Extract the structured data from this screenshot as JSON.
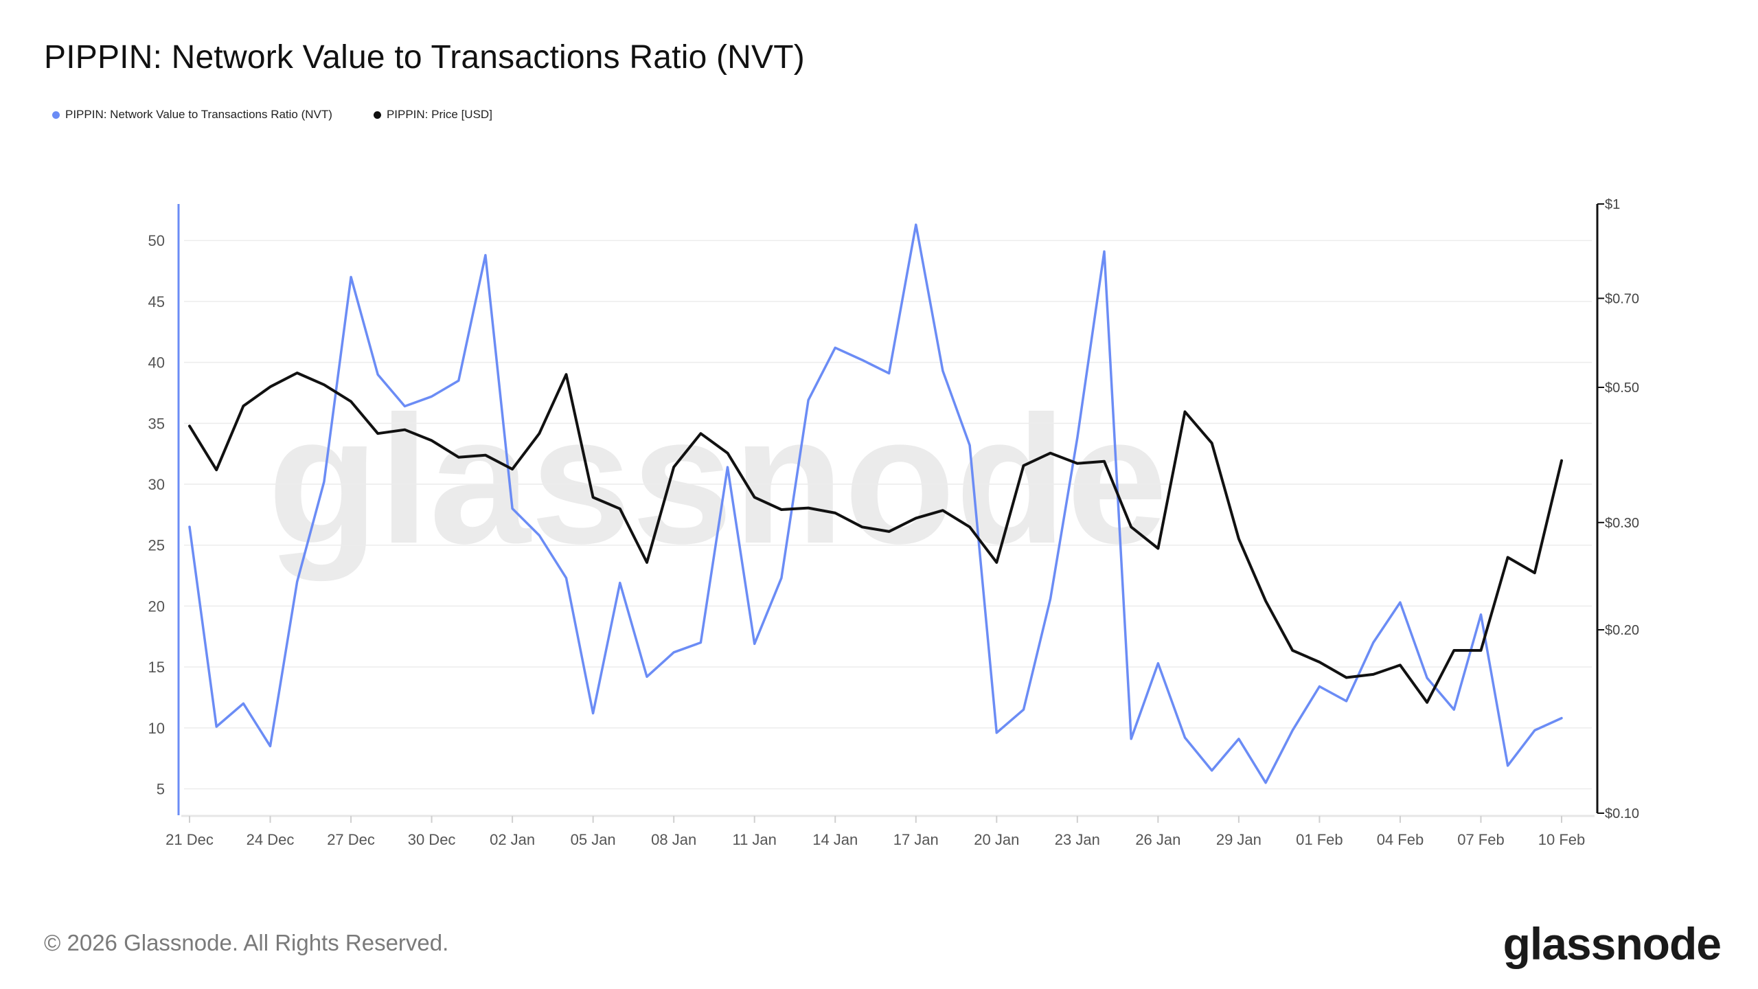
{
  "chart_data": {
    "type": "line",
    "title": "PIPPIN: Network Value to Transactions Ratio (NVT)",
    "x": [
      "21 Dec",
      "22 Dec",
      "23 Dec",
      "24 Dec",
      "25 Dec",
      "26 Dec",
      "27 Dec",
      "28 Dec",
      "29 Dec",
      "30 Dec",
      "31 Dec",
      "01 Jan",
      "02 Jan",
      "03 Jan",
      "04 Jan",
      "05 Jan",
      "06 Jan",
      "07 Jan",
      "08 Jan",
      "09 Jan",
      "10 Jan",
      "11 Jan",
      "12 Jan",
      "13 Jan",
      "14 Jan",
      "15 Jan",
      "16 Jan",
      "17 Jan",
      "18 Jan",
      "19 Jan",
      "20 Jan",
      "21 Jan",
      "22 Jan",
      "23 Jan",
      "24 Jan",
      "25 Jan",
      "26 Jan",
      "27 Jan",
      "28 Jan",
      "29 Jan",
      "30 Jan",
      "31 Jan",
      "01 Feb",
      "02 Feb",
      "03 Feb",
      "04 Feb",
      "05 Feb",
      "06 Feb",
      "07 Feb",
      "08 Feb",
      "09 Feb",
      "10 Feb"
    ],
    "x_tick_labels": [
      "21 Dec",
      "24 Dec",
      "27 Dec",
      "30 Dec",
      "02 Jan",
      "05 Jan",
      "08 Jan",
      "11 Jan",
      "14 Jan",
      "17 Jan",
      "20 Jan",
      "23 Jan",
      "26 Jan",
      "29 Jan",
      "01 Feb",
      "04 Feb",
      "07 Feb",
      "10 Feb"
    ],
    "y_ticks": [
      5,
      10,
      15,
      20,
      25,
      30,
      35,
      40,
      45,
      50
    ],
    "y_range": [
      3,
      53
    ],
    "y2_scale": "log",
    "y2_range": [
      0.1,
      1.0
    ],
    "y2_tick_values": [
      0.1,
      0.2,
      0.3,
      0.5,
      0.7,
      1.0
    ],
    "y2_tick_labels": [
      "$0.10",
      "$0.20",
      "$0.30",
      "$0.50",
      "$0.70",
      "$1"
    ],
    "grid": true,
    "legend_position": "top-left",
    "series": [
      {
        "name": "PIPPIN: Network Value to Transactions Ratio (NVT)",
        "axis": "left",
        "color": "#6b8cf5",
        "values": [
          26.5,
          10.1,
          12.0,
          8.5,
          22.0,
          30.2,
          47.0,
          39.0,
          36.4,
          37.2,
          38.5,
          48.8,
          28.0,
          25.8,
          22.3,
          11.2,
          21.9,
          14.2,
          16.2,
          17.0,
          31.4,
          16.9,
          22.3,
          36.9,
          41.2,
          40.2,
          39.1,
          51.3,
          39.3,
          33.2,
          9.6,
          11.5,
          20.6,
          33.8,
          49.1,
          9.1,
          15.3,
          9.2,
          6.5,
          9.1,
          5.5,
          9.8,
          13.4,
          12.2,
          17.0,
          20.3,
          14.1,
          11.5,
          19.3,
          6.9,
          9.8,
          10.8
        ]
      },
      {
        "name": "PIPPIN: Price [USD]",
        "axis": "right",
        "color": "#111111",
        "values": [
          0.432,
          0.366,
          0.466,
          0.501,
          0.528,
          0.505,
          0.474,
          0.42,
          0.426,
          0.409,
          0.384,
          0.387,
          0.367,
          0.42,
          0.525,
          0.33,
          0.316,
          0.258,
          0.37,
          0.42,
          0.39,
          0.33,
          0.315,
          0.317,
          0.311,
          0.295,
          0.29,
          0.305,
          0.314,
          0.295,
          0.258,
          0.372,
          0.39,
          0.375,
          0.378,
          0.295,
          0.272,
          0.456,
          0.405,
          0.282,
          0.223,
          0.185,
          0.177,
          0.167,
          0.169,
          0.175,
          0.152,
          0.185,
          0.185,
          0.263,
          0.248,
          0.379
        ]
      }
    ]
  },
  "watermark": "glassnode",
  "footer": {
    "copyright": "© 2026 Glassnode. All Rights Reserved.",
    "logo": "glassnode"
  }
}
